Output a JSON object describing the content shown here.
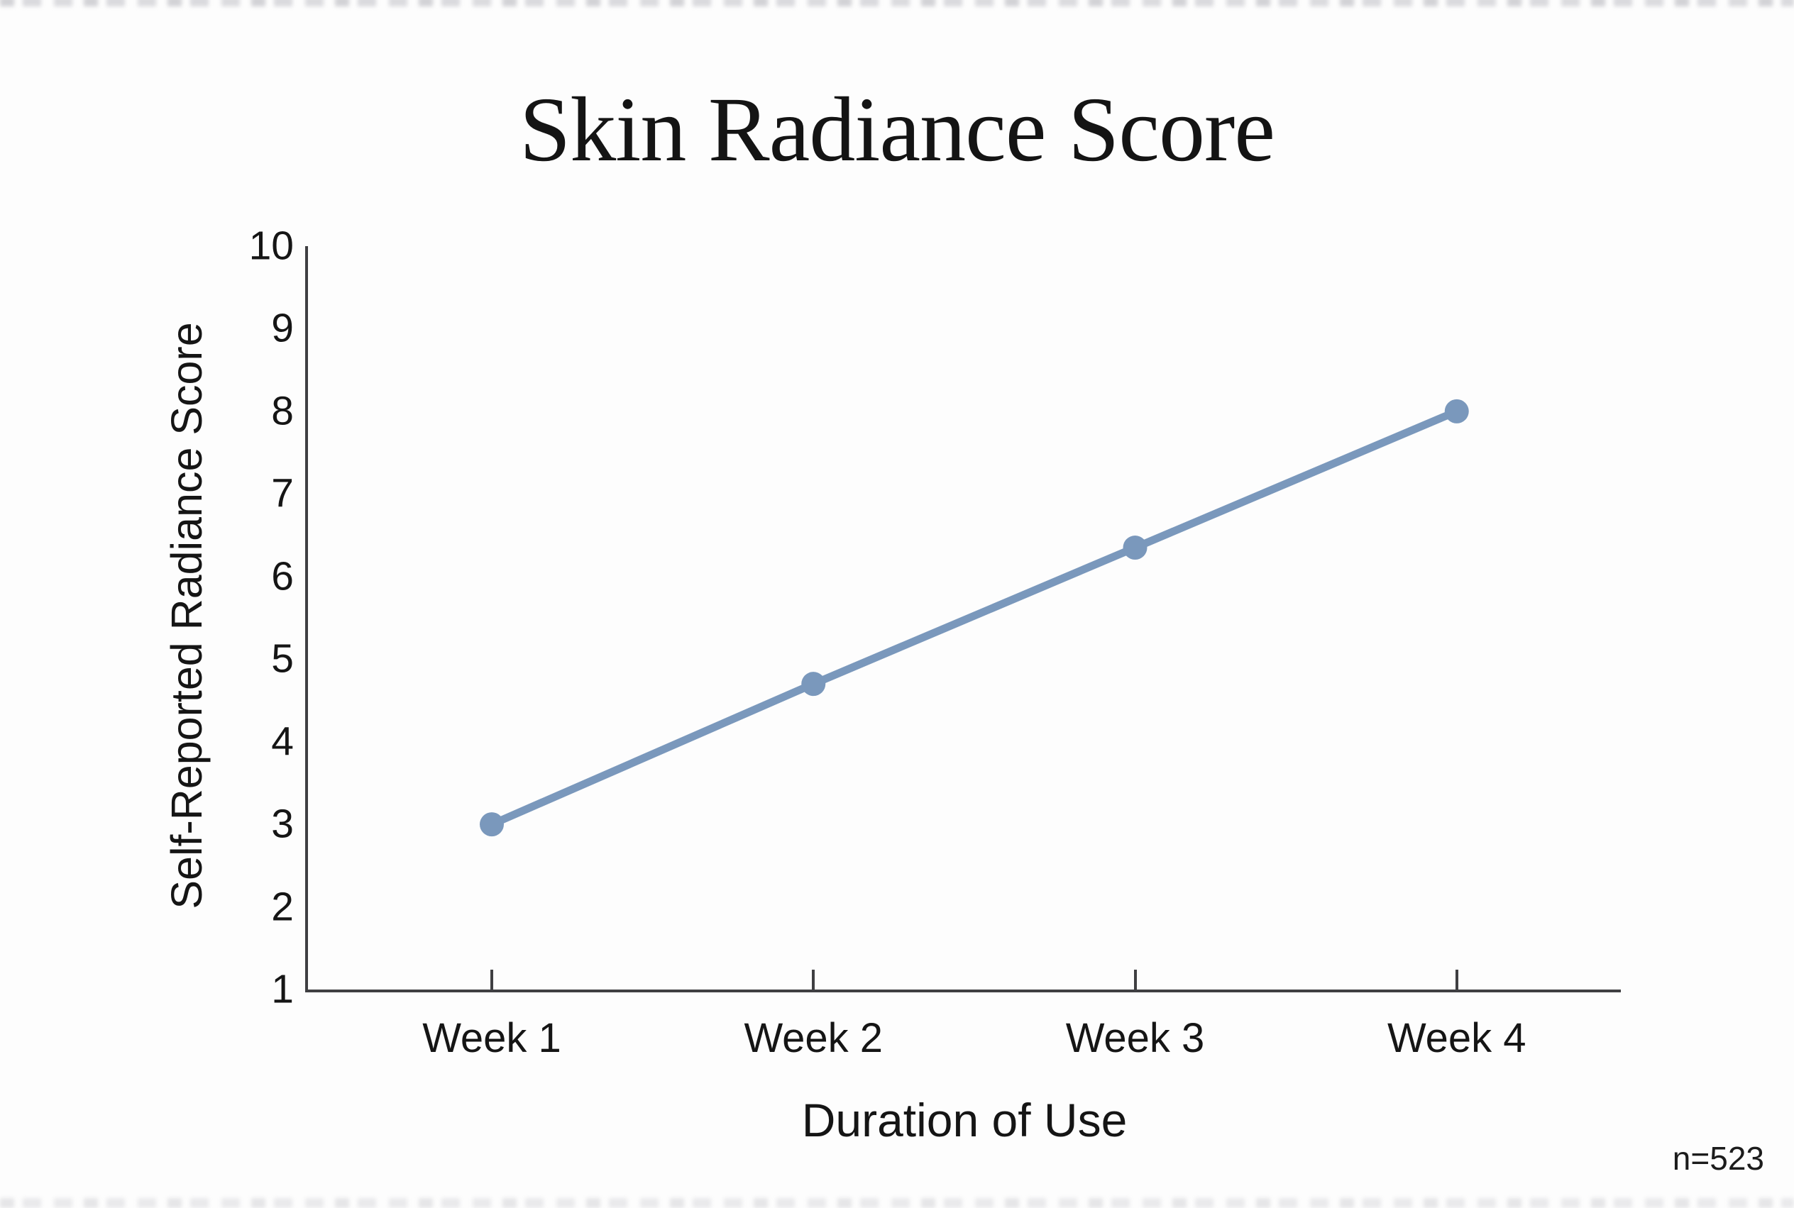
{
  "page": {
    "background": "#fdfdfd",
    "text_color": "#151515",
    "axis_color": "#3f3f42"
  },
  "chart_data": {
    "type": "line",
    "title": "Skin Radiance Score",
    "xlabel": "Duration of Use",
    "ylabel": "Self-Reported Radiance Score",
    "categories": [
      "Week 1",
      "Week 2",
      "Week 3",
      "Week 4"
    ],
    "series": [
      {
        "name": "Self-Reported Radiance Score",
        "values": [
          3.0,
          4.7,
          6.35,
          8.0
        ]
      }
    ],
    "ylim": [
      1,
      10
    ],
    "yticks": [
      1,
      2,
      3,
      4,
      5,
      6,
      7,
      8,
      9,
      10
    ],
    "grid": false,
    "legend": false,
    "marker": "circle",
    "line_color": "#7a98bc",
    "annotation": "n=523"
  }
}
